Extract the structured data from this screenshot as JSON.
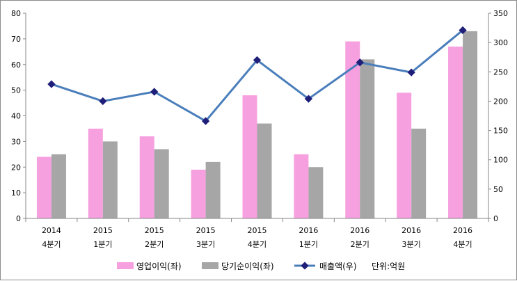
{
  "chart_data": {
    "type": "bar",
    "categories": [
      [
        "2014",
        "4분기"
      ],
      [
        "2015",
        "1분기"
      ],
      [
        "2015",
        "2분기"
      ],
      [
        "2015",
        "3분기"
      ],
      [
        "2015",
        "4분기"
      ],
      [
        "2016",
        "1분기"
      ],
      [
        "2016",
        "2분기"
      ],
      [
        "2016",
        "3분기"
      ],
      [
        "2016",
        "4분기"
      ]
    ],
    "series": [
      {
        "name": "영업이익(좌)",
        "type": "bar",
        "axis": "left",
        "color": "#f7a0e0",
        "values": [
          24,
          35,
          32,
          19,
          48,
          25,
          69,
          49,
          67
        ]
      },
      {
        "name": "당기순이익(좌)",
        "type": "bar",
        "axis": "left",
        "color": "#a6a6a6",
        "values": [
          25,
          30,
          27,
          22,
          37,
          20,
          62,
          35,
          73
        ]
      },
      {
        "name": "매출액(우)",
        "type": "line",
        "axis": "right",
        "color": "#4a7ebb",
        "marker_color": "#1f1f7a",
        "values": [
          229,
          200,
          216,
          166,
          270,
          204,
          266,
          249,
          321
        ]
      }
    ],
    "y_left": {
      "min": 0,
      "max": 80,
      "step": 10
    },
    "y_right": {
      "min": 0,
      "max": 350,
      "step": 50
    },
    "unit_note": "단위:억원",
    "grid": false,
    "legend_position": "bottom"
  }
}
